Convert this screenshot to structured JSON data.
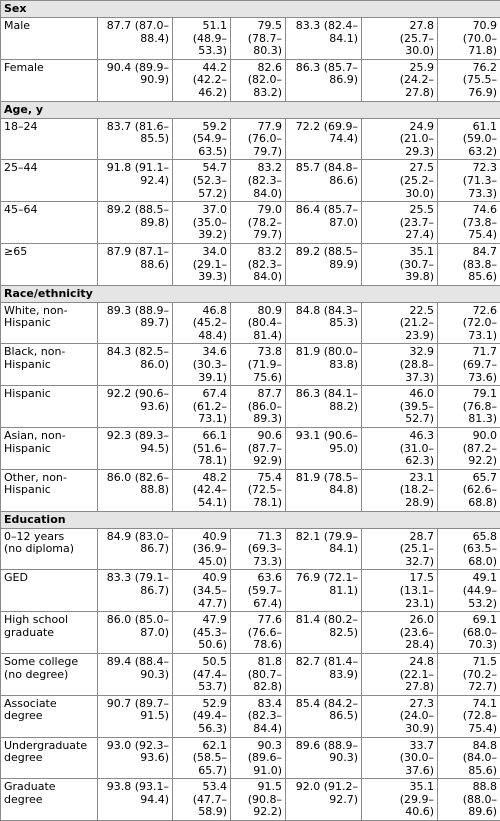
{
  "sections": [
    {
      "title": "Sex",
      "rows": [
        {
          "label": "Male",
          "values": [
            "87.7 (87.0–\n88.4)",
            "51.1\n(48.9–\n53.3)",
            "79.5\n(78.7–\n80.3)",
            "83.3 (82.4–\n84.1)",
            "27.8\n(25.7–\n30.0)",
            "70.9\n(70.0–\n71.8)"
          ]
        },
        {
          "label": "Female",
          "values": [
            "90.4 (89.9–\n90.9)",
            "44.2\n(42.2–\n46.2)",
            "82.6\n(82.0–\n83.2)",
            "86.3 (85.7–\n86.9)",
            "25.9\n(24.2–\n27.8)",
            "76.2\n(75.5–\n76.9)"
          ]
        }
      ]
    },
    {
      "title": "Age, y",
      "rows": [
        {
          "label": "18–24",
          "values": [
            "83.7 (81.6–\n85.5)",
            "59.2\n(54.9–\n63.5)",
            "77.9\n(76.0–\n79.7)",
            "72.2 (69.9–\n74.4)",
            "24.9\n(21.0–\n29.3)",
            "61.1\n(59.0–\n63.2)"
          ]
        },
        {
          "label": "25–44",
          "values": [
            "91.8 (91.1–\n92.4)",
            "54.7\n(52.3–\n57.2)",
            "83.2\n(82.3–\n84.0)",
            "85.7 (84.8–\n86.6)",
            "27.5\n(25.2–\n30.0)",
            "72.3\n(71.3–\n73.3)"
          ]
        },
        {
          "label": "45–64",
          "values": [
            "89.2 (88.5–\n89.8)",
            "37.0\n(35.0–\n39.2)",
            "79.0\n(78.2–\n79.7)",
            "86.4 (85.7–\n87.0)",
            "25.5\n(23.7–\n27.4)",
            "74.6\n(73.8–\n75.4)"
          ]
        },
        {
          "label": "≥65",
          "values": [
            "87.9 (87.1–\n88.6)",
            "34.0\n(29.1–\n39.3)",
            "83.2\n(82.3–\n84.0)",
            "89.2 (88.5–\n89.9)",
            "35.1\n(30.7–\n39.8)",
            "84.7\n(83.8–\n85.6)"
          ]
        }
      ]
    },
    {
      "title": "Race/ethnicity",
      "rows": [
        {
          "label": "White, non-\nHispanic",
          "values": [
            "89.3 (88.9–\n89.7)",
            "46.8\n(45.2–\n48.4)",
            "80.9\n(80.4–\n81.4)",
            "84.8 (84.3–\n85.3)",
            "22.5\n(21.2–\n23.9)",
            "72.6\n(72.0–\n73.1)"
          ]
        },
        {
          "label": "Black, non-\nHispanic",
          "values": [
            "84.3 (82.5–\n86.0)",
            "34.6\n(30.3–\n39.1)",
            "73.8\n(71.9–\n75.6)",
            "81.9 (80.0–\n83.8)",
            "32.9\n(28.8–\n37.3)",
            "71.7\n(69.7–\n73.6)"
          ]
        },
        {
          "label": "Hispanic",
          "values": [
            "92.2 (90.6–\n93.6)",
            "67.4\n(61.2–\n73.1)",
            "87.7\n(86.0–\n89.3)",
            "86.3 (84.1–\n88.2)",
            "46.0\n(39.5–\n52.7)",
            "79.1\n(76.8–\n81.3)"
          ]
        },
        {
          "label": "Asian, non-\nHispanic",
          "values": [
            "92.3 (89.3–\n94.5)",
            "66.1\n(51.6–\n78.1)",
            "90.6\n(87.7–\n92.9)",
            "93.1 (90.6–\n95.0)",
            "46.3\n(31.0–\n62.3)",
            "90.0\n(87.2–\n92.2)"
          ]
        },
        {
          "label": "Other, non-\nHispanic",
          "values": [
            "86.0 (82.6–\n88.8)",
            "48.2\n(42.4–\n54.1)",
            "75.4\n(72.5–\n78.1)",
            "81.9 (78.5–\n84.8)",
            "23.1\n(18.2–\n28.9)",
            "65.7\n(62.6–\n68.8)"
          ]
        }
      ]
    },
    {
      "title": "Education",
      "rows": [
        {
          "label": "0–12 years\n(no diploma)",
          "values": [
            "84.9 (83.0–\n86.7)",
            "40.9\n(36.9–\n45.0)",
            "71.3\n(69.3–\n73.3)",
            "82.1 (79.9–\n84.1)",
            "28.7\n(25.1–\n32.7)",
            "65.8\n(63.5–\n68.0)"
          ]
        },
        {
          "label": "GED",
          "values": [
            "83.3 (79.1–\n86.7)",
            "40.9\n(34.5–\n47.7)",
            "63.6\n(59.7–\n67.4)",
            "76.9 (72.1–\n81.1)",
            "17.5\n(13.1–\n23.1)",
            "49.1\n(44.9–\n53.2)"
          ]
        },
        {
          "label": "High school\ngraduate",
          "values": [
            "86.0 (85.0–\n87.0)",
            "47.9\n(45.3–\n50.6)",
            "77.6\n(76.6–\n78.6)",
            "81.4 (80.2–\n82.5)",
            "26.0\n(23.6–\n28.4)",
            "69.1\n(68.0–\n70.3)"
          ]
        },
        {
          "label": "Some college\n(no degree)",
          "values": [
            "89.4 (88.4–\n90.3)",
            "50.5\n(47.4–\n53.7)",
            "81.8\n(80.7–\n82.8)",
            "82.7 (81.4–\n83.9)",
            "24.8\n(22.1–\n27.8)",
            "71.5\n(70.2–\n72.7)"
          ]
        },
        {
          "label": "Associate\ndegree",
          "values": [
            "90.7 (89.7–\n91.5)",
            "52.9\n(49.4–\n56.3)",
            "83.4\n(82.3–\n84.4)",
            "85.4 (84.2–\n86.5)",
            "27.3\n(24.0–\n30.9)",
            "74.1\n(72.8–\n75.4)"
          ]
        },
        {
          "label": "Undergraduate\ndegree",
          "values": [
            "93.0 (92.3–\n93.6)",
            "62.1\n(58.5–\n65.7)",
            "90.3\n(89.6–\n91.0)",
            "89.6 (88.9–\n90.3)",
            "33.7\n(30.0–\n37.6)",
            "84.8\n(84.0–\n85.6)"
          ]
        },
        {
          "label": "Graduate\ndegree",
          "values": [
            "93.8 (93.1–\n94.4)",
            "53.4\n(47.7–\n58.9)",
            "91.5\n(90.8–\n92.2)",
            "92.0 (91.2–\n92.7)",
            "35.1\n(29.9–\n40.6)",
            "88.8\n(88.0–\n89.6)"
          ]
        }
      ]
    }
  ]
}
